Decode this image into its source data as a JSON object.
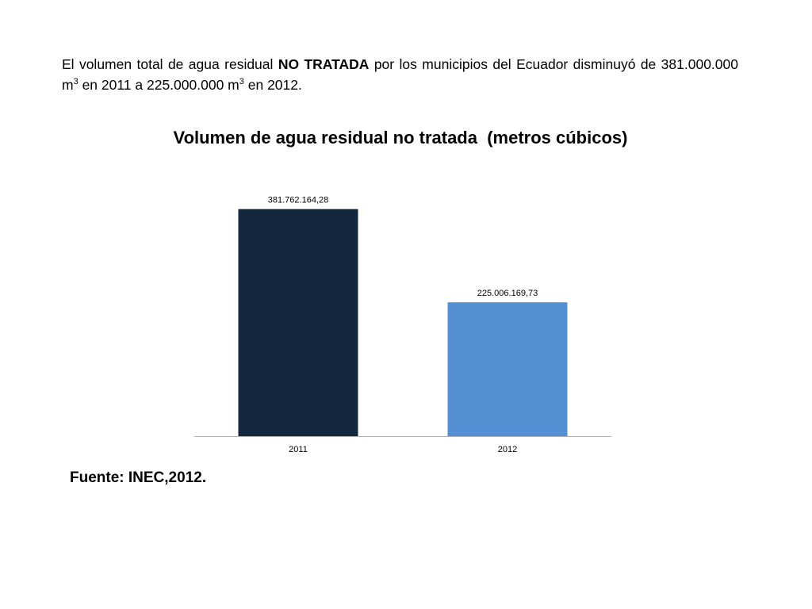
{
  "intro": {
    "part1": "El volumen total de agua residual ",
    "emphasis": "NO TRATADA",
    "part2": " por los municipios del Ecuador disminuyó de 381.000.000 m",
    "sup1": "3",
    "part3": " en 2011 a 225.000.000 m",
    "sup2": "3",
    "part4": " en 2012."
  },
  "source": "Fuente: INEC,2012.",
  "colors": {
    "bar_2011": "#13273f",
    "bar_2012": "#5590d4",
    "axis": "#b0b0b0"
  },
  "chart_data": {
    "type": "bar",
    "title": "Volumen de agua residual no tratada  (metros cúbicos)",
    "categories": [
      "2011",
      "2012"
    ],
    "values": [
      381762164.28,
      225006169.73
    ],
    "data_labels": [
      "381.762.164,28",
      "225.006.169,73"
    ],
    "xlabel": "",
    "ylabel": "",
    "ylim": [
      0,
      400000000
    ],
    "grid": false,
    "legend": "none"
  }
}
